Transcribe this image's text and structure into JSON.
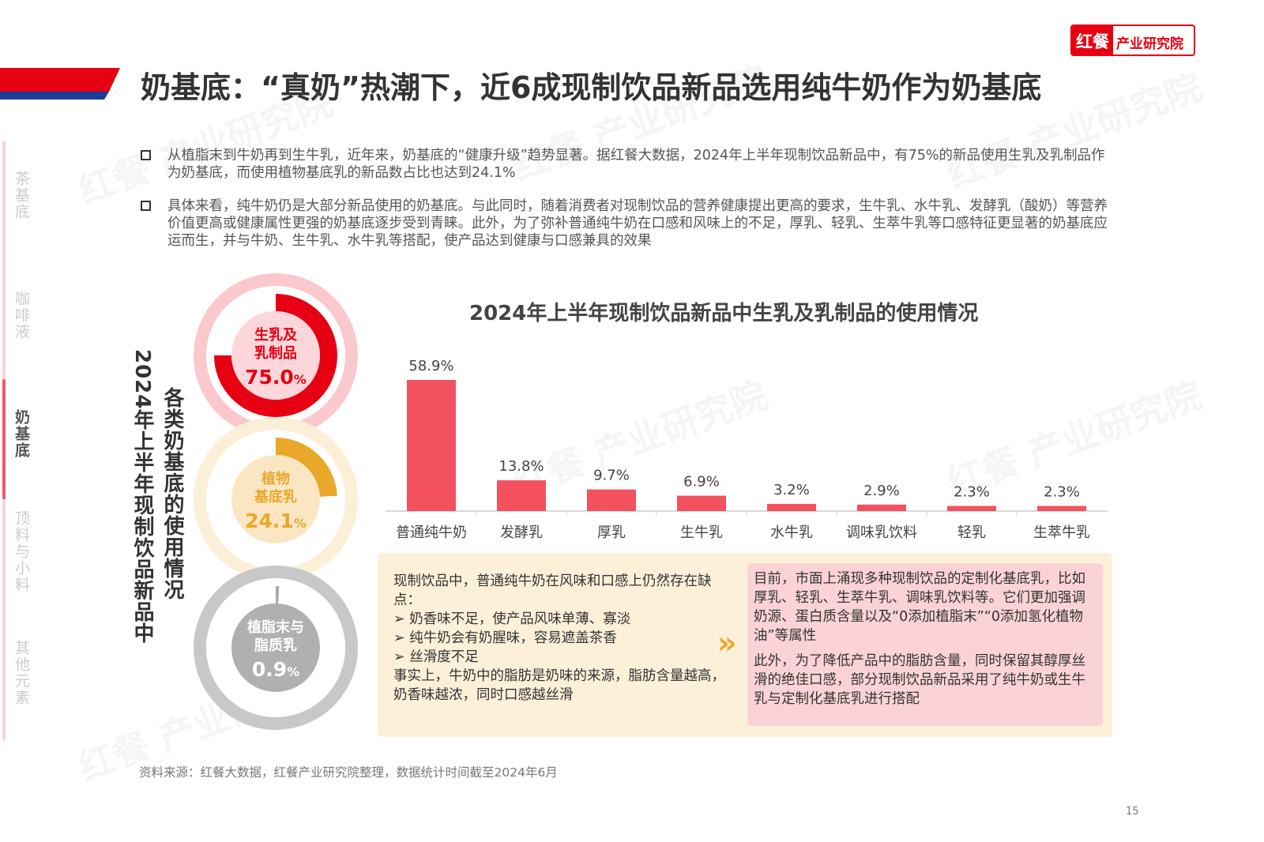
{
  "logo": {
    "mark": "红餐",
    "name": "产业研究院"
  },
  "title": "奶基底：“真奶”热潮下，近6成现制饮品新品选用纯牛奶作为奶基底",
  "side_nav": [
    {
      "label": "茶基底",
      "active": false
    },
    {
      "label": "咖啡液",
      "active": false
    },
    {
      "label": "奶基底",
      "active": true
    },
    {
      "label": "顶料与小料",
      "active": false
    },
    {
      "label": "其他元素",
      "active": false
    }
  ],
  "bullets": [
    "从植脂末到牛奶再到生牛乳，近年来，奶基底的“健康升级”趋势显著。据红餐大数据，2024年上半年现制饮品新品中，有75%的新品使用生乳及乳制品作为奶基底，而使用植物基底乳的新品数占比也达到24.1%",
    "具体来看，纯牛奶仍是大部分新品使用的奶基底。与此同时，随着消费者对现制饮品的营养健康提出更高的要求，生牛乳、水牛乳、发酵乳（酸奶）等营养价值更高或健康属性更强的奶基底逐步受到青睐。此外，为了弥补普通纯牛奶在口感和风味上的不足，厚乳、轻乳、生萃牛乳等口感特征更显著的奶基底应运而生，并与牛奶、生牛乳、水牛乳等搭配，使产品达到健康与口感兼具的效果"
  ],
  "donut_title": {
    "line1": "2024年上半年现制饮品新品中",
    "line2": "各类奶基底的使用情况"
  },
  "chart_data": [
    {
      "type": "pie",
      "title": "2024年上半年现制饮品新品中各类奶基底的使用情况",
      "slices": [
        {
          "label": "生乳及乳制品",
          "value": 75.0,
          "display": "75.0",
          "color": "#e60012",
          "ring": "#fbc8cd",
          "inner": "#fcd6da"
        },
        {
          "label": "植物基底乳",
          "value": 24.1,
          "display": "24.1",
          "color": "#e9a82a",
          "ring": "#fbefd8",
          "inner": "#fbe6c4"
        },
        {
          "label": "植脂末与脂质乳",
          "value": 0.9,
          "display": "0.9",
          "color": "#aaaaaa",
          "ring": "#c8c8c8",
          "inner": "#b0b0b0"
        }
      ],
      "unit": "%"
    },
    {
      "type": "bar",
      "title": "2024年上半年现制饮品新品中生乳及乳制品的使用情况",
      "categories": [
        "普通纯牛奶",
        "发酵乳",
        "厚乳",
        "生牛乳",
        "水牛乳",
        "调味乳饮料",
        "轻乳",
        "生萃牛乳"
      ],
      "values": [
        58.9,
        13.8,
        9.7,
        6.9,
        3.2,
        2.9,
        2.3,
        2.3
      ],
      "labels": [
        "58.9%",
        "13.8%",
        "9.7%",
        "6.9%",
        "3.2%",
        "2.9%",
        "2.3%",
        "2.3%"
      ],
      "ylim": [
        0,
        60
      ],
      "color": "#f4515f",
      "xlabel": "",
      "ylabel": ""
    }
  ],
  "left_note": {
    "intro": "现制饮品中，普通纯牛奶在风味和口感上仍然存在缺点：",
    "points": [
      "奶香味不足，使产品风味单薄、寡淡",
      "纯牛奶会有奶腥味，容易遮盖茶香",
      "丝滑度不足"
    ],
    "outro": "事实上，牛奶中的脂肪是奶味的来源，脂肪含量越高，奶香味越浓，同时口感越丝滑"
  },
  "right_note": {
    "p1": "目前，市面上涌现多种现制饮品的定制化基底乳，比如厚乳、轻乳、生萃牛乳、调味乳饮料等。它们更加强调奶源、蛋白质含量以及“0添加植脂末”“0添加氢化植物油”等属性",
    "p2": "此外，为了降低产品中的脂肪含量，同时保留其醇厚丝滑的绝佳口感，部分现制饮品新品采用了纯牛奶或生牛乳与定制化基底乳进行搭配"
  },
  "arrow": "»",
  "source": "资料来源：红餐大数据，红餐产业研究院整理，数据统计时间截至2024年6月",
  "page": "15"
}
